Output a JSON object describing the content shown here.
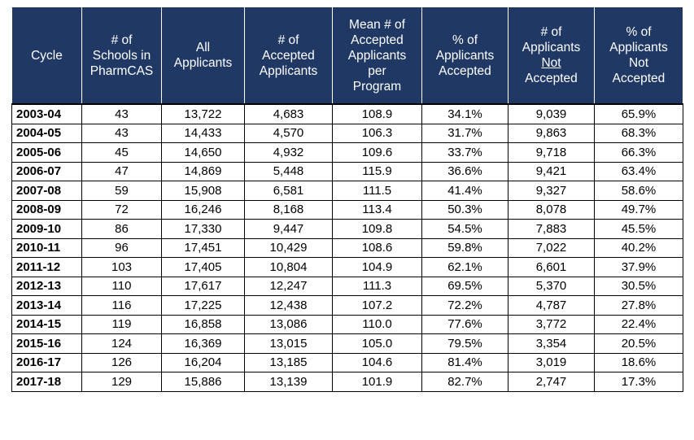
{
  "table": {
    "headers": [
      "Cycle",
      "# of\nSchools in\nPharmCAS",
      "All\nApplicants",
      "# of\nAccepted\nApplicants",
      "Mean # of\nAccepted\nApplicants\nper\nProgram",
      "% of\nApplicants\nAccepted",
      "# of\nApplicants\n",
      "% of\nApplicants\nNot\nAccepted"
    ],
    "header_underlined_word": "Not",
    "header_tail_after_underline": "Accepted",
    "rows": [
      [
        "2003-04",
        "43",
        "13,722",
        "4,683",
        "108.9",
        "34.1%",
        "9,039",
        "65.9%"
      ],
      [
        "2004-05",
        "43",
        "14,433",
        "4,570",
        "106.3",
        "31.7%",
        "9,863",
        "68.3%"
      ],
      [
        "2005-06",
        "45",
        "14,650",
        "4,932",
        "109.6",
        "33.7%",
        "9,718",
        "66.3%"
      ],
      [
        "2006-07",
        "47",
        "14,869",
        "5,448",
        "115.9",
        "36.6%",
        "9,421",
        "63.4%"
      ],
      [
        "2007-08",
        "59",
        "15,908",
        "6,581",
        "111.5",
        "41.4%",
        "9,327",
        "58.6%"
      ],
      [
        "2008-09",
        "72",
        "16,246",
        "8,168",
        "113.4",
        "50.3%",
        "8,078",
        "49.7%"
      ],
      [
        "2009-10",
        "86",
        "17,330",
        "9,447",
        "109.8",
        "54.5%",
        "7,883",
        "45.5%"
      ],
      [
        "2010-11",
        "96",
        "17,451",
        "10,429",
        "108.6",
        "59.8%",
        "7,022",
        "40.2%"
      ],
      [
        "2011-12",
        "103",
        "17,405",
        "10,804",
        "104.9",
        "62.1%",
        "6,601",
        "37.9%"
      ],
      [
        "2012-13",
        "110",
        "17,617",
        "12,247",
        "111.3",
        "69.5%",
        "5,370",
        "30.5%"
      ],
      [
        "2013-14",
        "116",
        "17,225",
        "12,438",
        "107.2",
        "72.2%",
        "4,787",
        "27.8%"
      ],
      [
        "2014-15",
        "119",
        "16,858",
        "13,086",
        "110.0",
        "77.6%",
        "3,772",
        "22.4%"
      ],
      [
        "2015-16",
        "124",
        "16,369",
        "13,015",
        "105.0",
        "79.5%",
        "3,354",
        "20.5%"
      ],
      [
        "2016-17",
        "126",
        "16,204",
        "13,185",
        "104.6",
        "81.4%",
        "3,019",
        "18.6%"
      ],
      [
        "2017-18",
        "129",
        "15,886",
        "13,139",
        "101.9",
        "82.7%",
        "2,747",
        "17.3%"
      ]
    ]
  }
}
